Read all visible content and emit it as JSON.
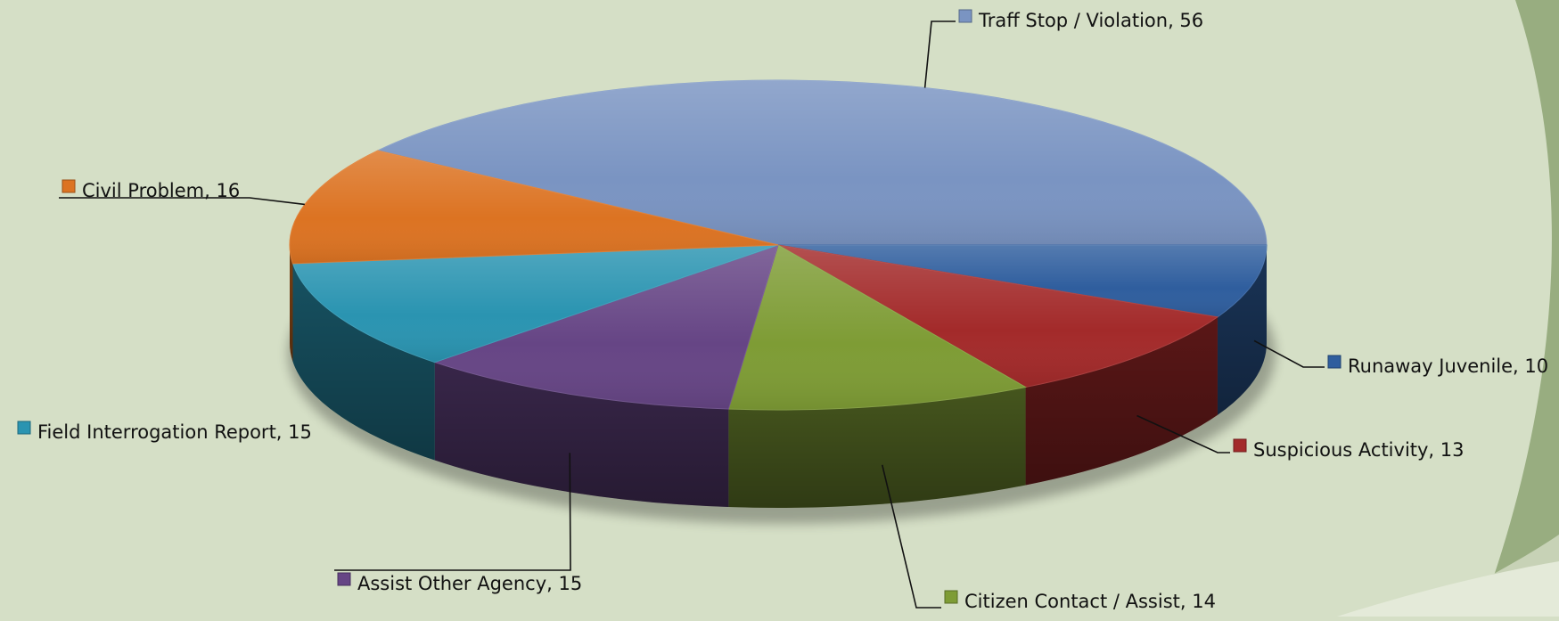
{
  "chart_data": {
    "type": "pie",
    "title": "",
    "slices": [
      {
        "label": "Traff Stop / Violation",
        "value": 56,
        "display": "Traff Stop / Violation, 56",
        "color": "#7a94c2"
      },
      {
        "label": "Runaway Juvenile",
        "value": 10,
        "display": "Runaway Juvenile, 10",
        "color": "#2f5e9e"
      },
      {
        "label": "Suspicious Activity",
        "value": 13,
        "display": "Suspicious Activity, 13",
        "color": "#a32a2a"
      },
      {
        "label": "Citizen Contact / Assist",
        "value": 14,
        "display": "Citizen Contact / Assist, 14",
        "color": "#7e9c35"
      },
      {
        "label": "Assist Other Agency",
        "value": 15,
        "display": "Assist Other Agency, 15",
        "color": "#664585"
      },
      {
        "label": "Field Interrogation Report",
        "value": 15,
        "display": "Field Interrogation Report, 15",
        "color": "#2a94b1"
      },
      {
        "label": "Civil Problem",
        "value": 16,
        "display": "Civil Problem, 16",
        "color": "#dc7322"
      }
    ],
    "style": "3d-pie",
    "legend": "none"
  },
  "theme": {
    "background": "#d5dfc6",
    "accent": "#98ad80",
    "accent_dark": "#8ea474"
  }
}
